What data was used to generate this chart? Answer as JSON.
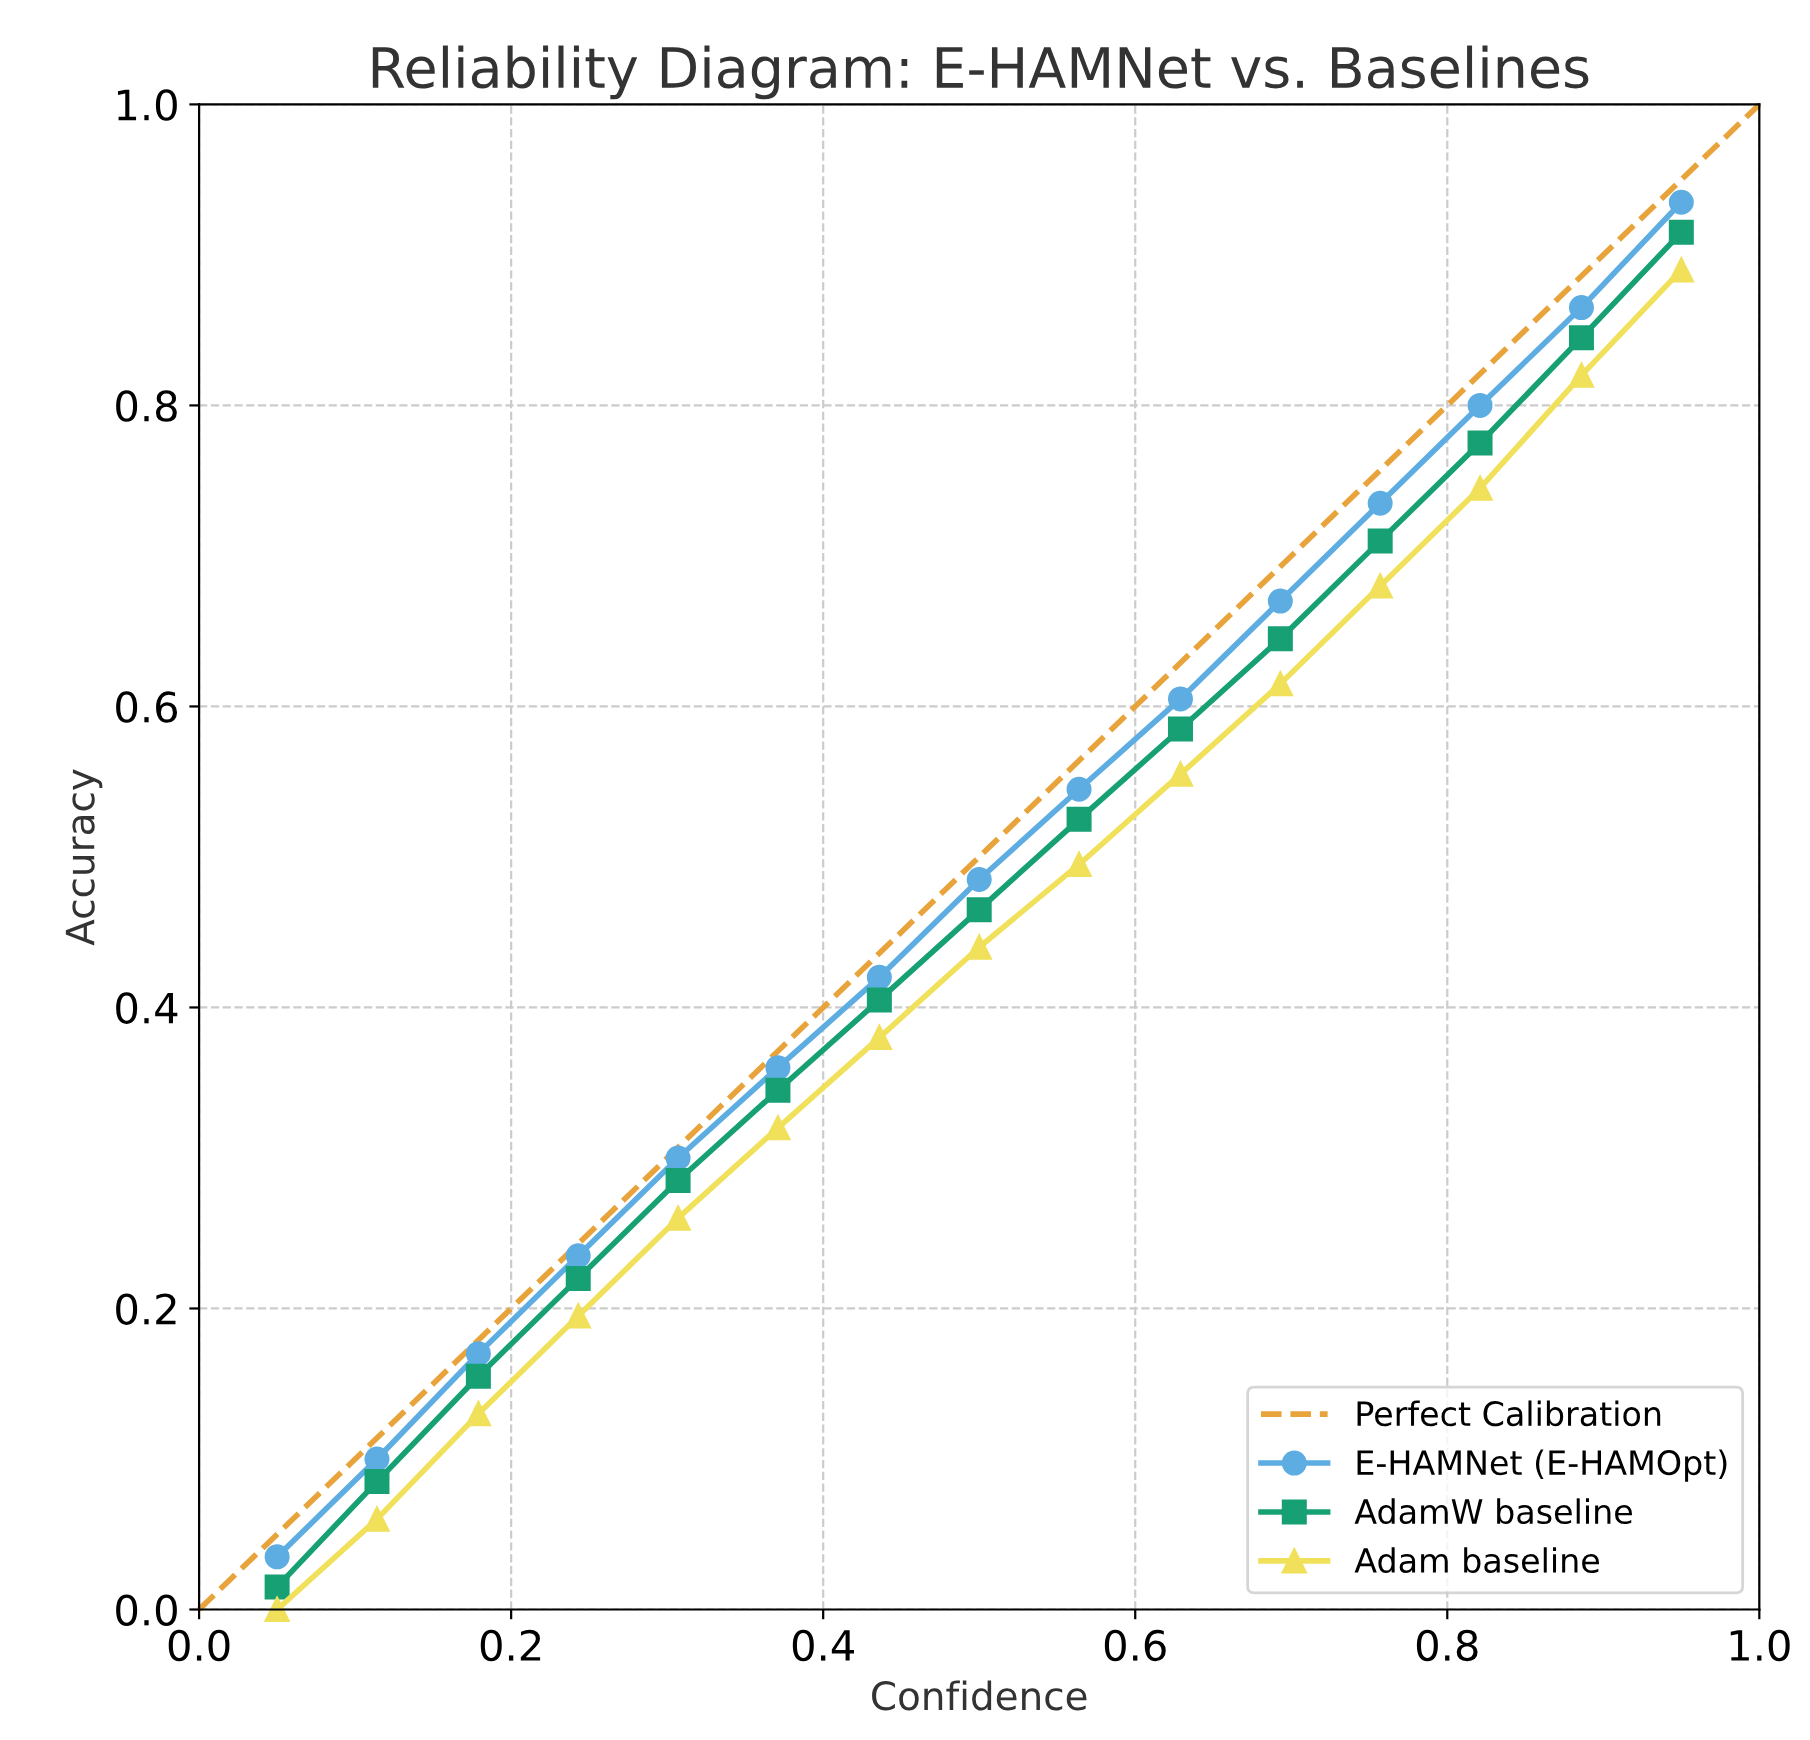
{
  "chart_data": {
    "type": "line",
    "title": "Reliability Diagram: E-HAMNet vs. Baselines",
    "xlabel": "Confidence",
    "ylabel": "Accuracy",
    "x": [
      0.05,
      0.114,
      0.179,
      0.243,
      0.307,
      0.371,
      0.436,
      0.5,
      0.564,
      0.629,
      0.693,
      0.757,
      0.821,
      0.886,
      0.95
    ],
    "series": [
      {
        "name": "Perfect Calibration",
        "color": "#e8a33a",
        "x": [
          0,
          1
        ],
        "values": [
          0,
          1
        ],
        "line_style": "dashed",
        "marker": "none"
      },
      {
        "name": "E-HAMNet (E-HAMOpt)",
        "color": "#5dade2",
        "marker": "circle",
        "values": [
          0.035,
          0.1,
          0.17,
          0.235,
          0.3,
          0.36,
          0.42,
          0.485,
          0.545,
          0.605,
          0.67,
          0.735,
          0.8,
          0.865,
          0.935
        ]
      },
      {
        "name": "AdamW baseline",
        "color": "#16a074",
        "marker": "square",
        "values": [
          0.015,
          0.085,
          0.155,
          0.22,
          0.285,
          0.345,
          0.405,
          0.465,
          0.525,
          0.585,
          0.645,
          0.71,
          0.775,
          0.845,
          0.915
        ]
      },
      {
        "name": "Adam baseline",
        "color": "#f0e05a",
        "marker": "triangle",
        "values": [
          0.0,
          0.06,
          0.13,
          0.195,
          0.26,
          0.32,
          0.38,
          0.44,
          0.495,
          0.555,
          0.615,
          0.68,
          0.745,
          0.82,
          0.89
        ]
      }
    ],
    "xlim": [
      0,
      1
    ],
    "ylim": [
      0,
      1
    ],
    "xticks": [
      {
        "value": 0,
        "label": "0.0"
      },
      0.2,
      0.4,
      0.6,
      0.8,
      {
        "value": 1,
        "label": "1.0"
      }
    ],
    "yticks": [
      {
        "value": 0,
        "label": "0.0"
      },
      0.2,
      0.4,
      0.6,
      0.8,
      {
        "value": 1,
        "label": "1.0"
      }
    ],
    "grid": true,
    "legend": "bottom right",
    "line_style": "solid"
  }
}
